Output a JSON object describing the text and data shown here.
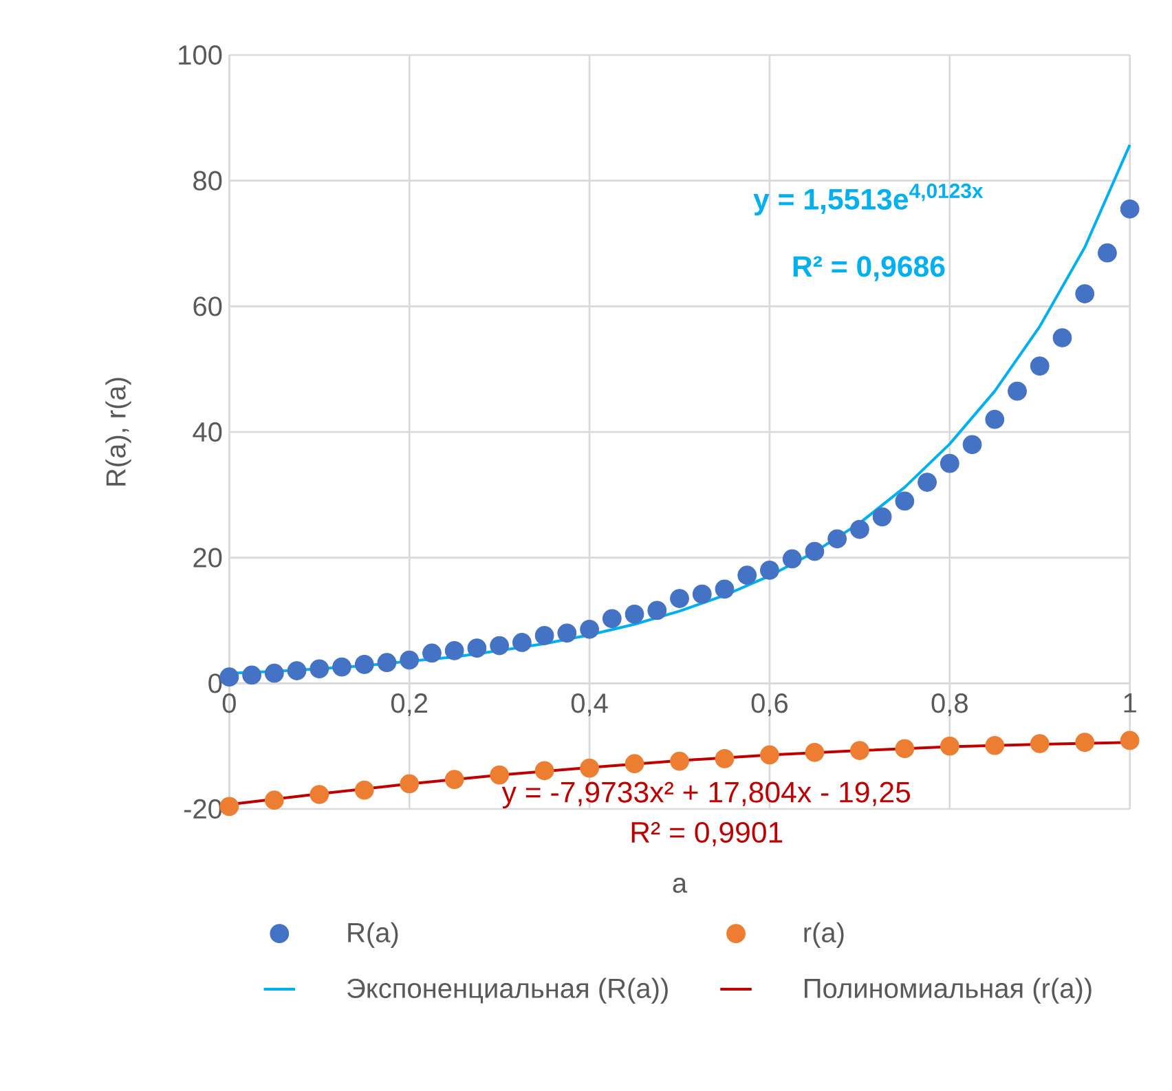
{
  "chart_data": {
    "type": "scatter",
    "xlabel": "a",
    "ylabel": "R(a), r(a)",
    "xlim": [
      0,
      1
    ],
    "ylim": [
      -20,
      100
    ],
    "xticks": [
      {
        "value": 0,
        "label": "0"
      },
      {
        "value": 0.2,
        "label": "0,2"
      },
      {
        "value": 0.4,
        "label": "0,4"
      },
      {
        "value": 0.6,
        "label": "0,6"
      },
      {
        "value": 0.8,
        "label": "0,8"
      },
      {
        "value": 1,
        "label": "1"
      }
    ],
    "yticks": [
      -20,
      0,
      20,
      40,
      60,
      80,
      100
    ],
    "grid": true,
    "legend": "bottom",
    "marker": "circle",
    "series": [
      {
        "name": "R(a)",
        "color": "#4472c4",
        "x": [
          0,
          0.025,
          0.05,
          0.075,
          0.1,
          0.125,
          0.15,
          0.175,
          0.2,
          0.225,
          0.25,
          0.275,
          0.3,
          0.325,
          0.35,
          0.375,
          0.4,
          0.425,
          0.45,
          0.475,
          0.5,
          0.525,
          0.55,
          0.575,
          0.6,
          0.625,
          0.65,
          0.675,
          0.7,
          0.725,
          0.75,
          0.775,
          0.8,
          0.825,
          0.85,
          0.875,
          0.9,
          0.925,
          0.95,
          0.975,
          1
        ],
        "values": [
          1.0,
          1.3,
          1.6,
          2.0,
          2.3,
          2.6,
          3.0,
          3.3,
          3.7,
          4.8,
          5.2,
          5.6,
          6.0,
          6.5,
          7.6,
          8.0,
          8.6,
          10.3,
          11.0,
          11.6,
          13.5,
          14.2,
          15.0,
          17.2,
          18.0,
          19.8,
          21.0,
          23.0,
          24.5,
          26.5,
          29.0,
          32.0,
          35.0,
          38.0,
          42.0,
          46.5,
          50.5,
          55.0,
          62.0,
          68.5,
          75.5
        ]
      },
      {
        "name": "r(a)",
        "color": "#ed7d31",
        "x": [
          0,
          0.05,
          0.1,
          0.15,
          0.2,
          0.25,
          0.3,
          0.35,
          0.4,
          0.45,
          0.5,
          0.55,
          0.6,
          0.65,
          0.7,
          0.75,
          0.8,
          0.85,
          0.9,
          0.95,
          1
        ],
        "values": [
          -19.6,
          -18.6,
          -17.7,
          -17.0,
          -16.0,
          -15.3,
          -14.6,
          -13.9,
          -13.5,
          -12.8,
          -12.4,
          -12.0,
          -11.4,
          -11.0,
          -10.7,
          -10.4,
          -10.0,
          -9.9,
          -9.6,
          -9.4,
          -9.1
        ]
      },
      {
        "name": "Экспоненциальная (R(a))",
        "type": "line",
        "marker": "none",
        "color": "#00b0f0",
        "x": [
          0,
          0.05,
          0.1,
          0.15,
          0.2,
          0.25,
          0.3,
          0.35,
          0.4,
          0.45,
          0.5,
          0.55,
          0.6,
          0.65,
          0.7,
          0.75,
          0.8,
          0.85,
          0.9,
          0.95,
          1
        ],
        "values": [
          1.6,
          1.9,
          2.3,
          2.8,
          3.5,
          4.2,
          5.2,
          6.3,
          7.7,
          9.4,
          11.5,
          14.0,
          17.1,
          20.9,
          25.5,
          31.2,
          38.1,
          46.5,
          56.8,
          69.4,
          85.7
        ]
      },
      {
        "name": "Полиномиальная (r(a))",
        "type": "line",
        "marker": "none",
        "color": "#c00000",
        "x": [
          0,
          0.1,
          0.2,
          0.3,
          0.4,
          0.5,
          0.6,
          0.7,
          0.8,
          0.9,
          1
        ],
        "values": [
          -19.3,
          -17.6,
          -16.0,
          -14.6,
          -13.4,
          -12.3,
          -11.4,
          -10.7,
          -10.1,
          -9.7,
          -9.4
        ]
      }
    ],
    "annotations": [
      "y = 1,5513e$^{4,0123x}$",
      "R² = 0,9686",
      "y = -7,9733x² + 17,804x - 19,25",
      "R² = 0,9901"
    ]
  }
}
